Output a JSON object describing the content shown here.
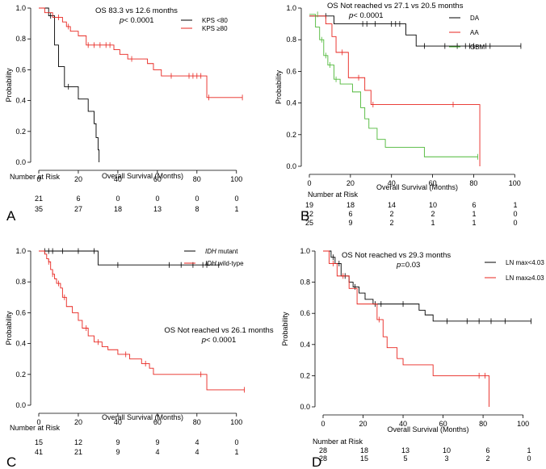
{
  "chart_data": [
    {
      "panel": "A",
      "type": "line",
      "xlabel": "Overall Survival (Months)",
      "ylabel": "Probability",
      "xlim": [
        0,
        105
      ],
      "ylim": [
        0,
        1.0
      ],
      "xticks": [
        0,
        20,
        40,
        60,
        80,
        100
      ],
      "yticks": [
        0.0,
        0.2,
        0.4,
        0.6,
        0.8,
        1.0
      ],
      "annotation": [
        "OS  83.3 vs 12.6 months",
        "p< 0.0001"
      ],
      "risk_title": "Number at Risk",
      "series": [
        {
          "name": "KPS <80",
          "color": "#000000",
          "steps": [
            [
              0,
              1.0
            ],
            [
              5,
              0.95
            ],
            [
              8,
              0.76
            ],
            [
              10,
              0.62
            ],
            [
              13,
              0.49
            ],
            [
              20,
              0.41
            ],
            [
              25,
              0.33
            ],
            [
              28,
              0.25
            ],
            [
              29,
              0.16
            ],
            [
              30,
              0.08
            ],
            [
              30.5,
              0.0
            ]
          ],
          "censor": [
            [
              6,
              0.95
            ],
            [
              15,
              0.49
            ]
          ],
          "risk": [
            "21",
            "6",
            "0",
            "0",
            "0",
            "0"
          ]
        },
        {
          "name": "KPS ≥80",
          "color": "#e8251f",
          "steps": [
            [
              0,
              1.0
            ],
            [
              3,
              0.97
            ],
            [
              7,
              0.94
            ],
            [
              12,
              0.91
            ],
            [
              14,
              0.88
            ],
            [
              16,
              0.85
            ],
            [
              20,
              0.82
            ],
            [
              24,
              0.76
            ],
            [
              38,
              0.73
            ],
            [
              41,
              0.7
            ],
            [
              45,
              0.67
            ],
            [
              55,
              0.64
            ],
            [
              58,
              0.6
            ],
            [
              62,
              0.56
            ],
            [
              85,
              0.42
            ]
          ],
          "censor": [
            [
              10,
              0.94
            ],
            [
              15,
              0.88
            ],
            [
              25,
              0.76
            ],
            [
              28,
              0.76
            ],
            [
              31,
              0.76
            ],
            [
              34,
              0.76
            ],
            [
              36,
              0.76
            ],
            [
              47,
              0.67
            ],
            [
              67,
              0.56
            ],
            [
              76,
              0.56
            ],
            [
              78,
              0.56
            ],
            [
              80,
              0.56
            ],
            [
              82,
              0.56
            ],
            [
              86,
              0.42
            ],
            [
              103,
              0.42
            ]
          ],
          "risk": [
            "35",
            "27",
            "18",
            "13",
            "8",
            "1"
          ]
        }
      ]
    },
    {
      "panel": "B",
      "type": "line",
      "xlabel": "Overall Survival (Months)",
      "ylabel": "Probability",
      "xlim": [
        0,
        105
      ],
      "ylim": [
        0,
        1.0
      ],
      "xticks": [
        0,
        20,
        40,
        60,
        80,
        100
      ],
      "yticks": [
        0.0,
        0.2,
        0.4,
        0.6,
        0.8,
        1.0
      ],
      "annotation": [
        "OS   Not reached vs 27.1 vs 20.5 months",
        "p< 0.0001"
      ],
      "risk_title": "Number at Risk",
      "series": [
        {
          "name": "DA",
          "color": "#000000",
          "steps": [
            [
              0,
              0.95
            ],
            [
              4,
              0.95
            ],
            [
              12,
              0.9
            ],
            [
              47,
              0.83
            ],
            [
              52,
              0.76
            ]
          ],
          "censor": [
            [
              8,
              0.95
            ],
            [
              26,
              0.9
            ],
            [
              28,
              0.9
            ],
            [
              32,
              0.9
            ],
            [
              40,
              0.9
            ],
            [
              42,
              0.9
            ],
            [
              44,
              0.9
            ],
            [
              56,
              0.76
            ],
            [
              66,
              0.76
            ],
            [
              72,
              0.76
            ],
            [
              76,
              0.76
            ],
            [
              78,
              0.76
            ],
            [
              80,
              0.76
            ],
            [
              86,
              0.76
            ],
            [
              88,
              0.76
            ],
            [
              103,
              0.76
            ]
          ],
          "risk": [
            "19",
            "18",
            "14",
            "10",
            "6",
            "1"
          ]
        },
        {
          "name": "AA",
          "color": "#e8251f",
          "steps": [
            [
              0,
              0.95
            ],
            [
              8,
              0.9
            ],
            [
              11,
              0.82
            ],
            [
              13,
              0.72
            ],
            [
              19,
              0.56
            ],
            [
              27,
              0.48
            ],
            [
              30,
              0.39
            ],
            [
              83,
              0.0
            ]
          ],
          "censor": [
            [
              16,
              0.72
            ],
            [
              24,
              0.56
            ],
            [
              31,
              0.39
            ],
            [
              70,
              0.39
            ]
          ],
          "risk": [
            "12",
            "6",
            "2",
            "2",
            "1",
            "0"
          ]
        },
        {
          "name": "GBM",
          "color": "#4db837",
          "steps": [
            [
              0,
              0.96
            ],
            [
              3,
              0.88
            ],
            [
              5,
              0.8
            ],
            [
              7,
              0.7
            ],
            [
              9,
              0.64
            ],
            [
              12,
              0.55
            ],
            [
              15,
              0.52
            ],
            [
              21,
              0.47
            ],
            [
              25,
              0.37
            ],
            [
              27,
              0.3
            ],
            [
              29,
              0.24
            ],
            [
              33,
              0.17
            ],
            [
              37,
              0.12
            ],
            [
              56,
              0.06
            ]
          ],
          "censor": [
            [
              4,
              0.96
            ],
            [
              6,
              0.8
            ],
            [
              8,
              0.7
            ],
            [
              10,
              0.64
            ],
            [
              13,
              0.55
            ],
            [
              82,
              0.06
            ]
          ],
          "risk": [
            "25",
            "9",
            "2",
            "1",
            "1",
            "0"
          ]
        }
      ]
    },
    {
      "panel": "C",
      "type": "line",
      "xlabel": "Overall Survival (Months)",
      "ylabel": "Probability",
      "xlim": [
        0,
        105
      ],
      "ylim": [
        0,
        1.0
      ],
      "xticks": [
        0,
        20,
        40,
        60,
        80,
        100
      ],
      "yticks": [
        0.0,
        0.2,
        0.4,
        0.6,
        0.8,
        1.0
      ],
      "annotation": [
        "OS Not reached vs 26.1 months",
        "p< 0.0001"
      ],
      "risk_title": "Number at Risk",
      "series": [
        {
          "name": "IDH mutant",
          "color": "#000000",
          "italic_prefix": "IDH",
          "suffix": " mutant",
          "steps": [
            [
              0,
              1.0
            ],
            [
              30,
              0.91
            ]
          ],
          "censor": [
            [
              3,
              1.0
            ],
            [
              5,
              1.0
            ],
            [
              7,
              1.0
            ],
            [
              12,
              1.0
            ],
            [
              20,
              1.0
            ],
            [
              28,
              1.0
            ],
            [
              40,
              0.91
            ],
            [
              66,
              0.91
            ],
            [
              72,
              0.91
            ],
            [
              78,
              0.91
            ],
            [
              83,
              0.91
            ],
            [
              85,
              0.91
            ],
            [
              91,
              0.91
            ]
          ],
          "risk": [
            "15",
            "12",
            "9",
            "9",
            "4",
            "0"
          ]
        },
        {
          "name": "IDH wild-type",
          "color": "#e8251f",
          "italic_prefix": "IDH",
          "suffix": " wild-type",
          "steps": [
            [
              0,
              1.0
            ],
            [
              3,
              0.98
            ],
            [
              4,
              0.95
            ],
            [
              5,
              0.93
            ],
            [
              6,
              0.88
            ],
            [
              7,
              0.85
            ],
            [
              8,
              0.82
            ],
            [
              9,
              0.79
            ],
            [
              11,
              0.76
            ],
            [
              12,
              0.7
            ],
            [
              14,
              0.64
            ],
            [
              17,
              0.6
            ],
            [
              20,
              0.55
            ],
            [
              22,
              0.5
            ],
            [
              25,
              0.45
            ],
            [
              28,
              0.41
            ],
            [
              32,
              0.38
            ],
            [
              35,
              0.36
            ],
            [
              40,
              0.33
            ],
            [
              46,
              0.3
            ],
            [
              52,
              0.27
            ],
            [
              56,
              0.24
            ],
            [
              58,
              0.2
            ],
            [
              85,
              0.1
            ]
          ],
          "censor": [
            [
              5,
              0.93
            ],
            [
              7,
              0.85
            ],
            [
              10,
              0.79
            ],
            [
              13,
              0.7
            ],
            [
              24,
              0.5
            ],
            [
              30,
              0.41
            ],
            [
              44,
              0.33
            ],
            [
              54,
              0.27
            ],
            [
              82,
              0.2
            ],
            [
              104,
              0.1
            ]
          ],
          "risk": [
            "41",
            "21",
            "9",
            "4",
            "4",
            "1"
          ]
        }
      ]
    },
    {
      "panel": "D",
      "type": "line",
      "xlabel": "Overall Survival (Months)",
      "ylabel": "Probability",
      "xlim": [
        0,
        105
      ],
      "ylim": [
        0,
        1.0
      ],
      "xticks": [
        0,
        20,
        40,
        60,
        80,
        100
      ],
      "yticks": [
        0.0,
        0.2,
        0.4,
        0.6,
        0.8,
        1.0
      ],
      "annotation": [
        "OS  Not reached vs 29.3 months",
        "p=0.03"
      ],
      "risk_title": "Number at Risk",
      "series": [
        {
          "name": "LN max<4.03",
          "color": "#000000",
          "steps": [
            [
              0,
              1.0
            ],
            [
              4,
              0.96
            ],
            [
              6,
              0.92
            ],
            [
              9,
              0.84
            ],
            [
              13,
              0.8
            ],
            [
              15,
              0.77
            ],
            [
              18,
              0.73
            ],
            [
              21,
              0.69
            ],
            [
              25,
              0.66
            ],
            [
              48,
              0.62
            ],
            [
              51,
              0.59
            ],
            [
              55,
              0.55
            ]
          ],
          "censor": [
            [
              5,
              0.96
            ],
            [
              8,
              0.92
            ],
            [
              11,
              0.84
            ],
            [
              16,
              0.77
            ],
            [
              26,
              0.66
            ],
            [
              29,
              0.66
            ],
            [
              40,
              0.66
            ],
            [
              62,
              0.55
            ],
            [
              72,
              0.55
            ],
            [
              78,
              0.55
            ],
            [
              84,
              0.55
            ],
            [
              91,
              0.55
            ],
            [
              104,
              0.55
            ]
          ],
          "risk": [
            "28",
            "18",
            "13",
            "10",
            "6",
            "1"
          ]
        },
        {
          "name": "LN max≥4.03",
          "color": "#e8251f",
          "steps": [
            [
              0,
              1.0
            ],
            [
              3,
              0.92
            ],
            [
              7,
              0.84
            ],
            [
              13,
              0.76
            ],
            [
              17,
              0.66
            ],
            [
              27,
              0.56
            ],
            [
              30,
              0.45
            ],
            [
              32,
              0.38
            ],
            [
              37,
              0.31
            ],
            [
              40,
              0.27
            ],
            [
              55,
              0.2
            ],
            [
              83,
              0.0
            ]
          ],
          "censor": [
            [
              5,
              0.92
            ],
            [
              10,
              0.84
            ],
            [
              28,
              0.56
            ],
            [
              78,
              0.2
            ],
            [
              81,
              0.2
            ]
          ],
          "risk": [
            "28",
            "15",
            "5",
            "3",
            "2",
            "0"
          ]
        }
      ]
    }
  ]
}
